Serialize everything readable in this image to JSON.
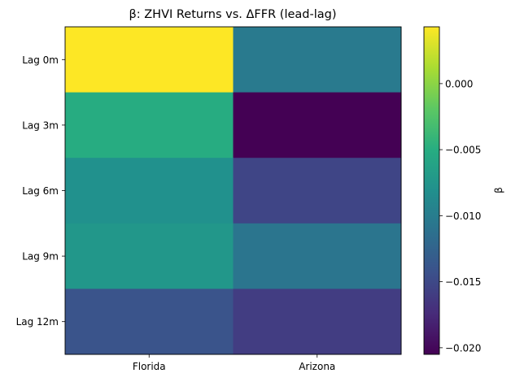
{
  "chart_data": {
    "type": "heatmap",
    "title": "β: ZHVI Returns vs. ΔFFR (lead-lag)",
    "xlabel": "",
    "ylabel": "",
    "x_categories": [
      "Florida",
      "Arizona"
    ],
    "y_categories": [
      "Lag 0m",
      "Lag 3m",
      "Lag 6m",
      "Lag 9m",
      "Lag 12m"
    ],
    "values": [
      [
        0.0043,
        -0.0103
      ],
      [
        -0.0051,
        -0.0205
      ],
      [
        -0.008,
        -0.0153
      ],
      [
        -0.0074,
        -0.0108
      ],
      [
        -0.014,
        -0.016
      ]
    ],
    "colorbar": {
      "label": "β",
      "range": [
        -0.0205,
        0.0043
      ],
      "ticks": [
        0.0,
        -0.005,
        -0.01,
        -0.015,
        -0.02
      ],
      "tick_labels": [
        "0.000",
        "−0.005",
        "−0.010",
        "−0.015",
        "−0.020"
      ],
      "colormap": "viridis"
    },
    "grid": false,
    "legend": "none"
  }
}
